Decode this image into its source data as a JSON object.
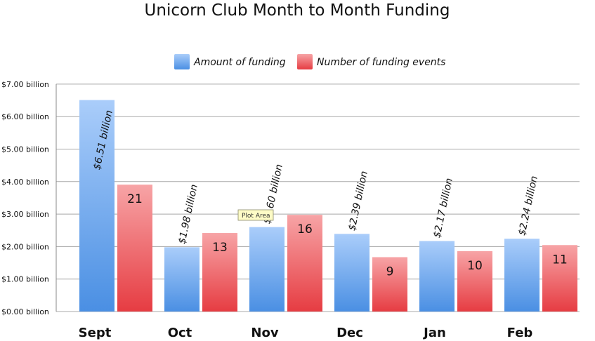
{
  "chart_data": {
    "type": "bar",
    "title": "Unicorn Club Month to Month Funding",
    "categories": [
      "Sept",
      "Oct",
      "Nov",
      "Dec",
      "Jan",
      "Feb"
    ],
    "series": [
      {
        "name": "Amount of funding",
        "values": [
          6.51,
          1.98,
          2.6,
          2.39,
          2.17,
          2.24
        ],
        "labels": [
          "$6.51 billion",
          "$1.98 billion",
          "$2.60 billion",
          "$2.39 billion",
          "$2.17 billion",
          "$2.24 billion"
        ],
        "color_top": "#aacdfa",
        "color_bottom": "#4a8fe3"
      },
      {
        "name": "Number of funding events",
        "values": [
          21,
          13,
          16,
          9,
          10,
          11
        ],
        "labels": [
          "21",
          "13",
          "16",
          "9",
          "10",
          "11"
        ],
        "color_top": "#f7a4a6",
        "color_bottom": "#e63c42"
      }
    ],
    "events_axis_equivalent_per_event": 0.186,
    "yticks": [
      "$0.00 billion",
      "$1.00 billion",
      "$2.00 billion",
      "$3.00 billion",
      "$4.00 billion",
      "$5.00 billion",
      "$6.00 billion",
      "$7.00 billion"
    ],
    "ylim": [
      0,
      7
    ],
    "grid": true,
    "legend_position": "top",
    "tooltip": "Plot Area"
  }
}
